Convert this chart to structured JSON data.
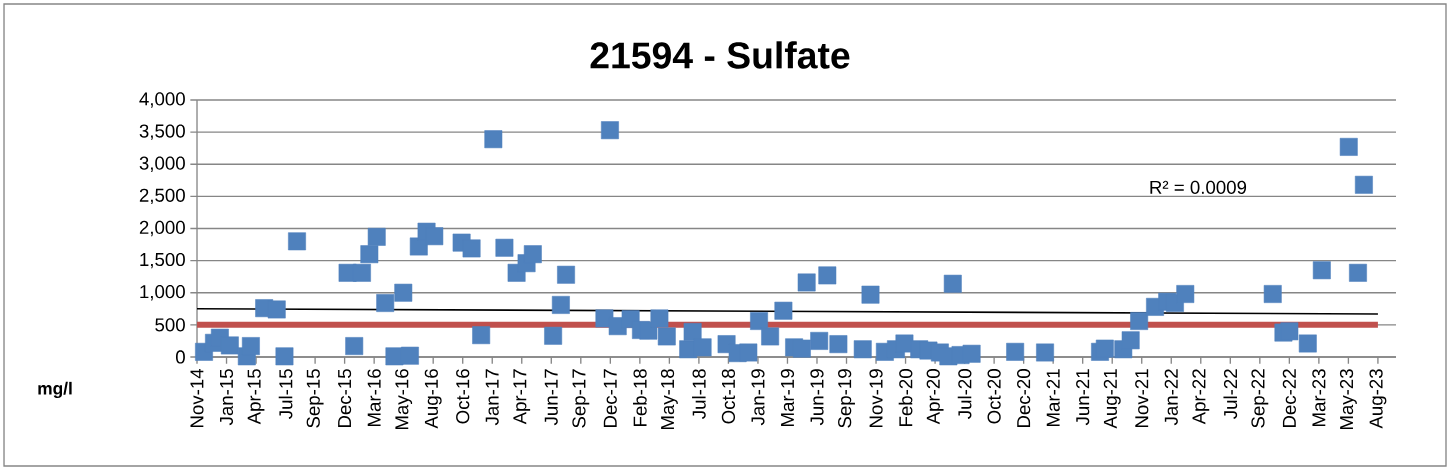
{
  "chart_data": {
    "type": "scatter",
    "title": "21594 - Sulfate",
    "ylabel": "mg/l",
    "marker": "square",
    "grid": "y",
    "annotations": [
      "R² = 0.0009"
    ],
    "xlim": [
      "2014-11-07",
      "2023-09-30"
    ],
    "ylim": [
      0,
      4000
    ],
    "xticks": [
      {
        "value": "2014-11-07",
        "label": "Nov-14"
      },
      {
        "value": "2015-01-26",
        "label": "Jan-15"
      },
      {
        "value": "2015-04-16",
        "label": "Apr-15"
      },
      {
        "value": "2015-07-05",
        "label": "Jul-15"
      },
      {
        "value": "2015-09-23",
        "label": "Sep-15"
      },
      {
        "value": "2015-12-12",
        "label": "Dec-15"
      },
      {
        "value": "2016-03-01",
        "label": "Mar-16"
      },
      {
        "value": "2016-05-20",
        "label": "May-16"
      },
      {
        "value": "2016-08-08",
        "label": "Aug-16"
      },
      {
        "value": "2016-10-27",
        "label": "Oct-16"
      },
      {
        "value": "2017-01-15",
        "label": "Jan-17"
      },
      {
        "value": "2017-04-05",
        "label": "Apr-17"
      },
      {
        "value": "2017-06-24",
        "label": "Jun-17"
      },
      {
        "value": "2017-09-12",
        "label": "Sep-17"
      },
      {
        "value": "2017-12-01",
        "label": "Dec-17"
      },
      {
        "value": "2018-02-19",
        "label": "Feb-18"
      },
      {
        "value": "2018-05-10",
        "label": "May-18"
      },
      {
        "value": "2018-07-29",
        "label": "Jul-18"
      },
      {
        "value": "2018-10-17",
        "label": "Oct-18"
      },
      {
        "value": "2019-01-05",
        "label": "Jan-19"
      },
      {
        "value": "2019-03-26",
        "label": "Mar-19"
      },
      {
        "value": "2019-06-14",
        "label": "Jun-19"
      },
      {
        "value": "2019-09-02",
        "label": "Sep-19"
      },
      {
        "value": "2019-11-21",
        "label": "Nov-19"
      },
      {
        "value": "2020-02-09",
        "label": "Feb-20"
      },
      {
        "value": "2020-04-29",
        "label": "Apr-20"
      },
      {
        "value": "2020-07-18",
        "label": "Jul-20"
      },
      {
        "value": "2020-10-06",
        "label": "Oct-20"
      },
      {
        "value": "2020-12-25",
        "label": "Dec-20"
      },
      {
        "value": "2021-03-15",
        "label": "Mar-21"
      },
      {
        "value": "2021-06-03",
        "label": "Jun-21"
      },
      {
        "value": "2021-08-22",
        "label": "Aug-21"
      },
      {
        "value": "2021-11-10",
        "label": "Nov-21"
      },
      {
        "value": "2022-01-29",
        "label": "Jan-22"
      },
      {
        "value": "2022-04-19",
        "label": "Apr-22"
      },
      {
        "value": "2022-07-08",
        "label": "Jul-22"
      },
      {
        "value": "2022-09-26",
        "label": "Sep-22"
      },
      {
        "value": "2022-12-15",
        "label": "Dec-22"
      },
      {
        "value": "2023-03-05",
        "label": "Mar-23"
      },
      {
        "value": "2023-05-24",
        "label": "May-23"
      },
      {
        "value": "2023-08-12",
        "label": "Aug-23"
      }
    ],
    "yticks": [
      {
        "value": 0,
        "label": "0"
      },
      {
        "value": 500,
        "label": "500"
      },
      {
        "value": 1000,
        "label": "1,000"
      },
      {
        "value": 1500,
        "label": "1,500"
      },
      {
        "value": 2000,
        "label": "2,000"
      },
      {
        "value": 2500,
        "label": "2,500"
      },
      {
        "value": 3000,
        "label": "3,000"
      },
      {
        "value": 3500,
        "label": "3,500"
      },
      {
        "value": 4000,
        "label": "4,000"
      }
    ],
    "ref_lines": [
      {
        "axis": "y",
        "value": 500,
        "color": "#c0504d"
      }
    ],
    "series": [
      {
        "color": "#4f81bd",
        "x": [
          "2014-11-26",
          "2014-12-23",
          "2015-01-08",
          "2015-02-04",
          "2015-03-22",
          "2015-04-02",
          "2015-05-08",
          "2015-06-11",
          "2015-07-02",
          "2015-08-05",
          "2015-12-20",
          "2016-01-07",
          "2016-01-28",
          "2016-02-17",
          "2016-03-08",
          "2016-03-31",
          "2016-04-25",
          "2016-05-19",
          "2016-06-06",
          "2016-06-30",
          "2016-07-21",
          "2016-08-11",
          "2016-10-24",
          "2016-11-20",
          "2016-12-16",
          "2017-01-18",
          "2017-02-17",
          "2017-03-22",
          "2017-04-18",
          "2017-05-05",
          "2017-06-29",
          "2017-07-20",
          "2017-08-03",
          "2017-11-15",
          "2017-11-30",
          "2017-12-21",
          "2018-01-25",
          "2018-02-22",
          "2018-03-14",
          "2018-04-13",
          "2018-05-03",
          "2018-06-30",
          "2018-07-12",
          "2018-08-08",
          "2018-10-12",
          "2018-11-11",
          "2018-12-10",
          "2019-01-08",
          "2019-02-07",
          "2019-03-15",
          "2019-04-13",
          "2019-05-04",
          "2019-05-17",
          "2019-06-20",
          "2019-07-12",
          "2019-08-11",
          "2019-10-16",
          "2019-11-06",
          "2019-12-15",
          "2020-01-14",
          "2020-02-06",
          "2020-03-17",
          "2020-04-11",
          "2020-05-12",
          "2020-06-04",
          "2020-06-16",
          "2020-07-07",
          "2020-08-06",
          "2020-12-02",
          "2021-02-21",
          "2021-07-20",
          "2021-08-02",
          "2021-09-21",
          "2021-10-11",
          "2021-11-03",
          "2021-12-16",
          "2022-01-18",
          "2022-02-08",
          "2022-03-08",
          "2022-10-31",
          "2022-11-29",
          "2022-12-15",
          "2023-02-03",
          "2023-03-13",
          "2023-05-25",
          "2023-06-19",
          "2023-07-05"
        ],
        "values": [
          80,
          220,
          300,
          180,
          10,
          170,
          760,
          740,
          10,
          1800,
          1310,
          170,
          1310,
          1600,
          1870,
          840,
          10,
          1000,
          20,
          1720,
          1950,
          1880,
          1780,
          1690,
          340,
          3390,
          1700,
          1310,
          1460,
          1600,
          330,
          810,
          1280,
          600,
          3530,
          480,
          590,
          420,
          410,
          600,
          320,
          120,
          390,
          150,
          200,
          60,
          70,
          560,
          320,
          720,
          150,
          130,
          1160,
          250,
          1270,
          200,
          120,
          970,
          80,
          120,
          210,
          120,
          100,
          70,
          10,
          1140,
          30,
          50,
          80,
          70,
          80,
          130,
          120,
          260,
          560,
          780,
          860,
          840,
          980,
          980,
          380,
          400,
          210,
          1350,
          3270,
          1310,
          2680
        ]
      },
      {
        "type": "line",
        "color": "#000000",
        "marker": "none",
        "x": [
          "2014-11-07",
          "2023-08-12"
        ],
        "values": [
          750,
          670
        ]
      }
    ]
  }
}
